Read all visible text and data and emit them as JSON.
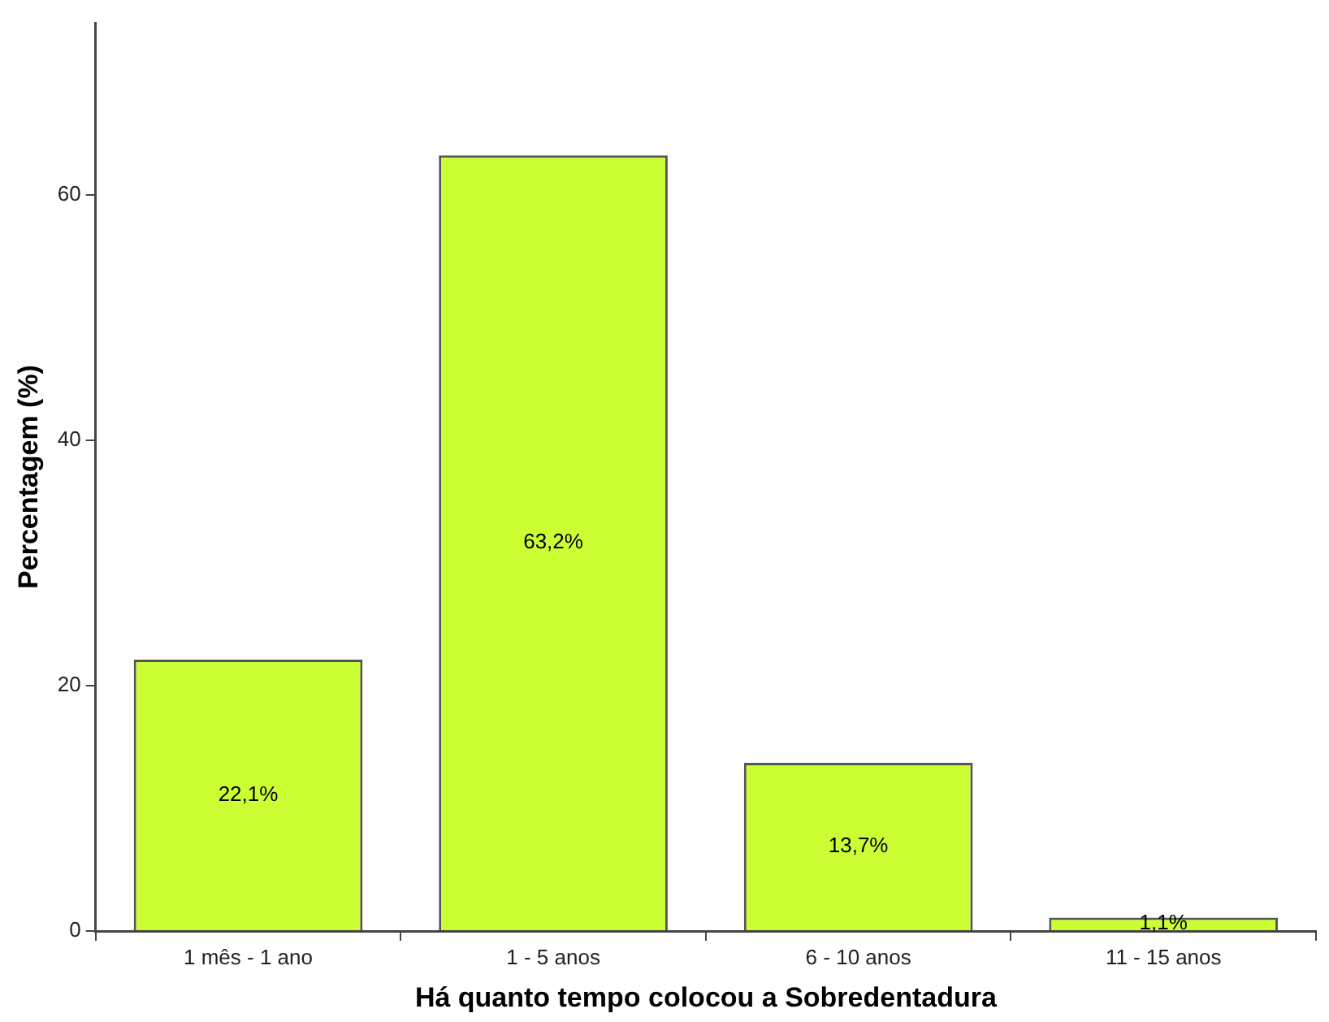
{
  "chart_data": {
    "type": "bar",
    "xlabel": "Há quanto tempo colocou a Sobredentadura",
    "ylabel": "Percentagem (%)",
    "categories": [
      "1 mês - 1 ano",
      "1 - 5 anos",
      "6 - 10 anos",
      "11 - 15 anos"
    ],
    "values": [
      22.1,
      63.2,
      13.7,
      1.1
    ],
    "value_labels": [
      "22,1%",
      "63,2%",
      "13,7%",
      "1,1%"
    ],
    "color": "#ccff33",
    "ylim": [
      0,
      74
    ],
    "yticks": [
      0,
      20,
      40,
      60
    ],
    "grid": false,
    "legend": false
  }
}
